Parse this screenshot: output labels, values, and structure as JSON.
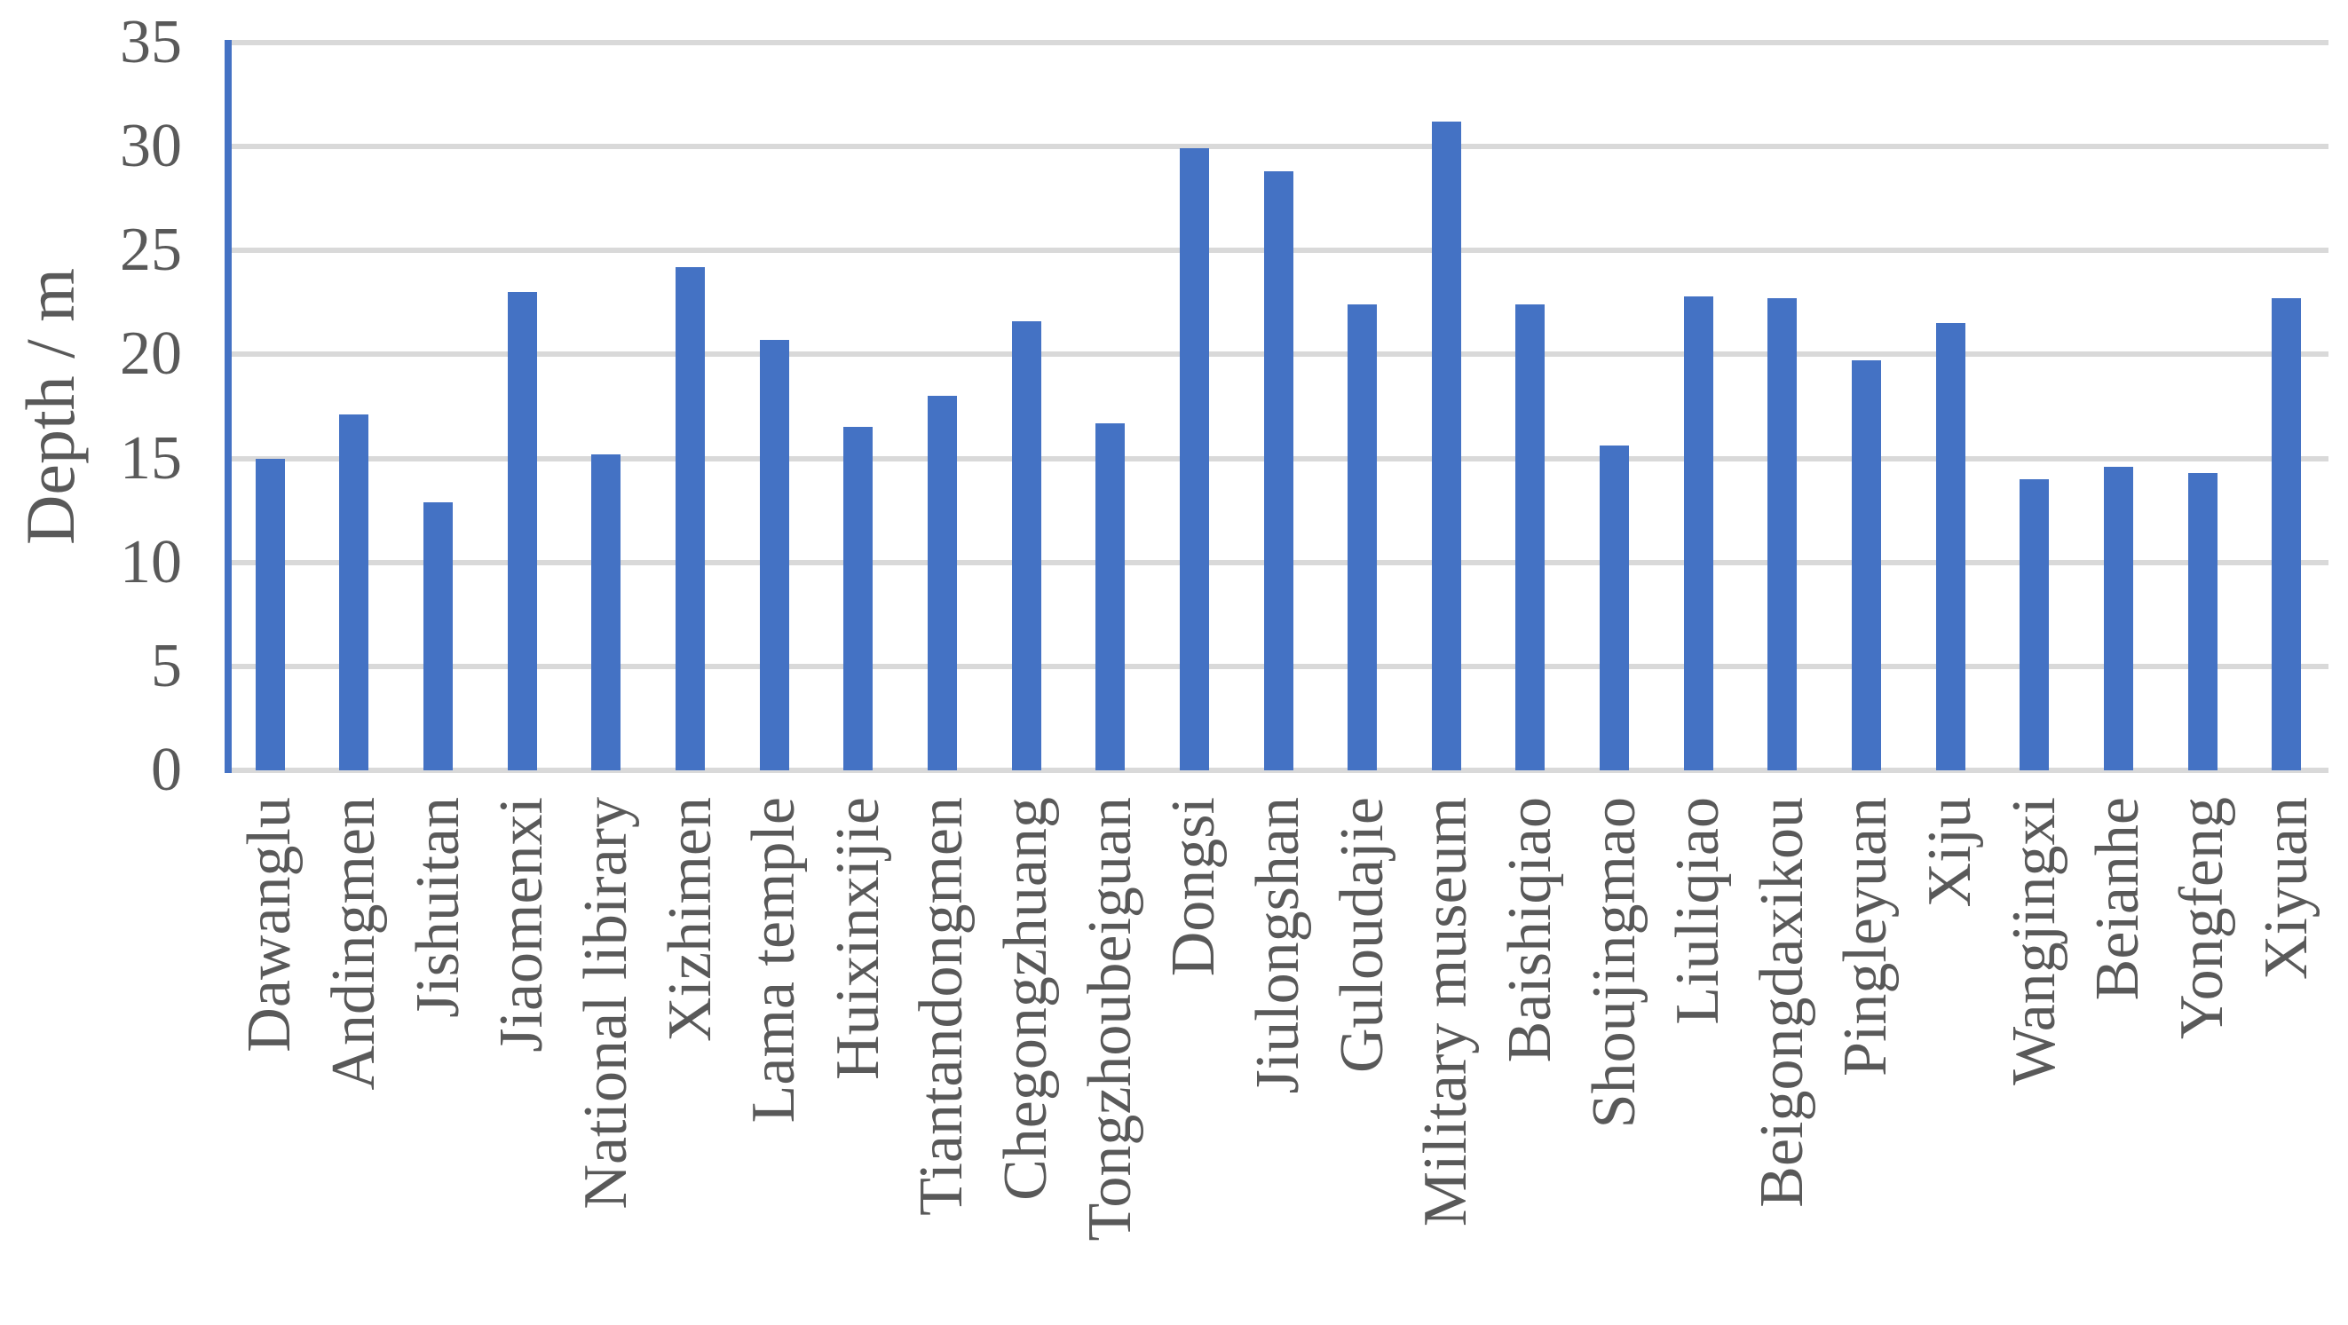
{
  "chart_data": {
    "type": "bar",
    "title": "",
    "categories": [
      "Dawanglu",
      "Andingmen",
      "Jishuitan",
      "Jiaomenxi",
      "National libirary",
      "Xizhimen",
      "Lama temple",
      "Huixinxijie",
      "Tiantandongmen",
      "Chegongzhuang",
      "Tongzhoubeiguan",
      "Dongsi",
      "Jiulongshan",
      "Guloudajie",
      "Military museum",
      "Baishiqiao",
      "Shoujingmao",
      "Liuliqiao",
      "Beigongdaxikou",
      "Pingleyuan",
      "Xiju",
      "Wangjingxi",
      "Beianhe",
      "Yongfeng",
      "Xiyuan"
    ],
    "values": [
      15.0,
      17.1,
      12.9,
      23.0,
      15.2,
      24.2,
      20.7,
      16.5,
      18.0,
      21.6,
      16.7,
      29.9,
      28.8,
      22.4,
      31.2,
      22.4,
      15.6,
      22.8,
      22.7,
      19.7,
      21.5,
      14.0,
      14.6,
      14.3,
      22.7
    ],
    "xlabel": "",
    "ylabel": "Depth / m",
    "ylim": [
      0,
      35
    ],
    "ytick_step": 5,
    "yticks": [
      "0",
      "5",
      "10",
      "15",
      "20",
      "25",
      "30",
      "35"
    ],
    "grid": "horizontal",
    "legend": "none",
    "bar_color": "#4472C4",
    "y_axis_line_color": "#4472C4",
    "gridline_color": "#D9D9D9",
    "axis_text_color": "#595959"
  }
}
